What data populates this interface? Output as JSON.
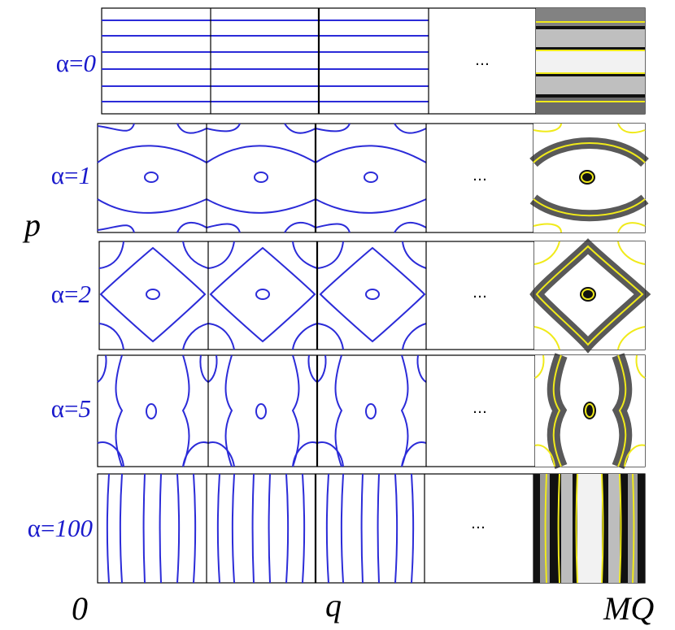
{
  "rows": [
    {
      "alpha_label": "α=",
      "alpha_value": "0"
    },
    {
      "alpha_label": "α=",
      "alpha_value": "1"
    },
    {
      "alpha_label": "α=",
      "alpha_value": "2"
    },
    {
      "alpha_label": "α=",
      "alpha_value": "5"
    },
    {
      "alpha_label": "α=",
      "alpha_value": "100"
    }
  ],
  "axis": {
    "p": "p",
    "zero": "0",
    "q": "q",
    "mq": "MQ"
  },
  "ellipsis": "…",
  "colors": {
    "contour": "#2b2bd8",
    "label": "#1a1acc",
    "yellow": "#f0ea1a"
  }
}
